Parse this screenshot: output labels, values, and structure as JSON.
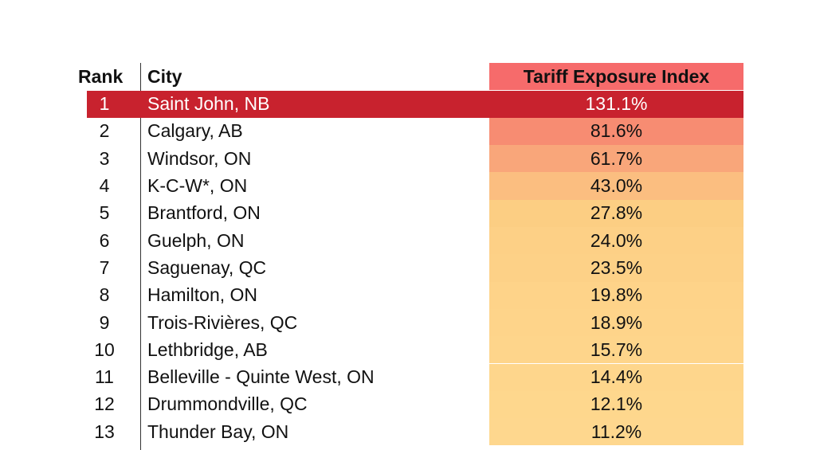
{
  "chart_data": {
    "type": "table",
    "columns": [
      "Rank",
      "City",
      "Tariff Exposure Index"
    ],
    "rows": [
      {
        "rank": "1",
        "city": "Saint John, NB",
        "value": "131.1%",
        "color": "#c8222e"
      },
      {
        "rank": "2",
        "city": "Calgary, AB",
        "value": "81.6%",
        "color": "#f78c72"
      },
      {
        "rank": "3",
        "city": "Windsor, ON",
        "value": "61.7%",
        "color": "#f9a67a"
      },
      {
        "rank": "4",
        "city": "K-C-W*, ON",
        "value": "43.0%",
        "color": "#fbbe80"
      },
      {
        "rank": "5",
        "city": "Brantford, ON",
        "value": "27.8%",
        "color": "#fcce83"
      },
      {
        "rank": "6",
        "city": "Guelph, ON",
        "value": "24.0%",
        "color": "#fdd086"
      },
      {
        "rank": "7",
        "city": "Saguenay, QC",
        "value": "23.5%",
        "color": "#fdd187"
      },
      {
        "rank": "8",
        "city": "Hamilton, ON",
        "value": "19.8%",
        "color": "#fed389"
      },
      {
        "rank": "9",
        "city": "Trois-Rivières, QC",
        "value": "18.9%",
        "color": "#fed48a"
      },
      {
        "rank": "10",
        "city": "Lethbridge, AB",
        "value": "15.7%",
        "color": "#fed58b"
      },
      {
        "rank": "11",
        "city": "Belleville - Quinte West, ON",
        "value": "14.4%",
        "color": "#fed68c"
      },
      {
        "rank": "12",
        "city": "Drummondville, QC",
        "value": "12.1%",
        "color": "#fed78d"
      },
      {
        "rank": "13",
        "city": "Thunder Bay, ON",
        "value": "11.2%",
        "color": "#fed78e"
      }
    ],
    "header_color": "#f66b6b",
    "highlight_row_color": "#c8222e"
  }
}
